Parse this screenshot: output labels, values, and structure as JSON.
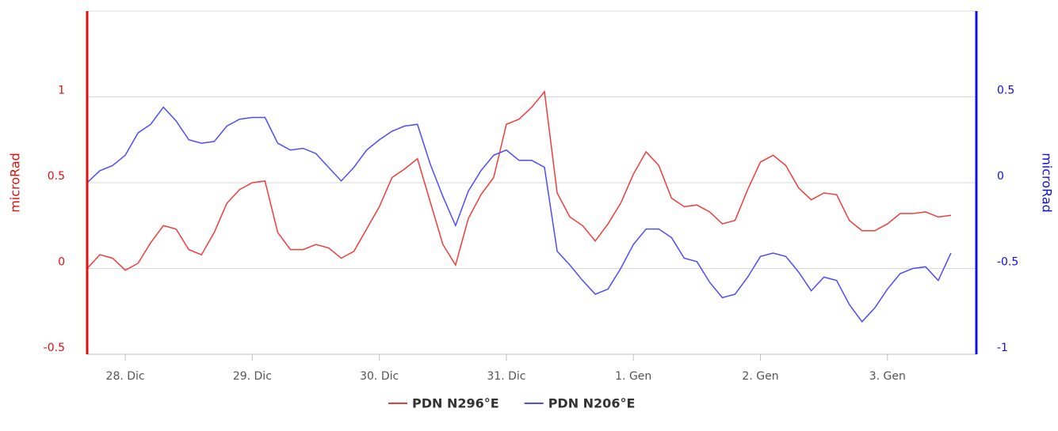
{
  "chart_data": {
    "type": "line",
    "y_label": "microRad",
    "y2_label": "microRad",
    "xlim": [
      -0.3,
      6.7
    ],
    "xticks": [
      {
        "value": 0,
        "label": "28. Dic"
      },
      {
        "value": 1,
        "label": "29. Dic"
      },
      {
        "value": 2,
        "label": "30. Dic"
      },
      {
        "value": 3,
        "label": "31. Dic"
      },
      {
        "value": 4,
        "label": "1. Gen"
      },
      {
        "value": 5,
        "label": "2. Gen"
      },
      {
        "value": 6,
        "label": "3. Gen"
      }
    ],
    "ylim": [
      -0.5,
      1.5
    ],
    "yticks": [
      -0.5,
      0,
      0.5,
      1
    ],
    "y2lim": [
      -1,
      1
    ],
    "y2ticks": [
      -1,
      -0.5,
      0,
      0.5
    ],
    "grid": true,
    "y_color": "#e01010",
    "y2_color": "#1010e0",
    "x": [
      -0.3,
      -0.2,
      -0.1,
      0,
      0.1,
      0.2,
      0.3,
      0.4,
      0.5,
      0.6,
      0.7,
      0.8,
      0.9,
      1,
      1.1,
      1.2,
      1.3,
      1.4,
      1.5,
      1.6,
      1.7,
      1.8,
      1.9,
      2,
      2.1,
      2.2,
      2.3,
      2.4,
      2.5,
      2.6,
      2.7,
      2.8,
      2.9,
      3,
      3.1,
      3.2,
      3.3,
      3.4,
      3.5,
      3.6,
      3.7,
      3.8,
      3.9,
      4,
      4.1,
      4.2,
      4.3,
      4.4,
      4.5,
      4.6,
      4.7,
      4.8,
      4.9,
      5,
      5.1,
      5.2,
      5.3,
      5.4,
      5.5,
      5.6,
      5.7,
      5.8,
      5.9,
      6,
      6.1,
      6.2,
      6.3,
      6.4,
      6.5
    ],
    "series": [
      {
        "name": "PDN N296°E",
        "color": "#f03c3c",
        "axis": "y",
        "values": [
          0,
          0.08,
          0.06,
          -0.01,
          0.03,
          0.15,
          0.25,
          0.23,
          0.11,
          0.08,
          0.21,
          0.38,
          0.46,
          0.5,
          0.51,
          0.21,
          0.11,
          0.11,
          0.14,
          0.12,
          0.06,
          0.1,
          0.23,
          0.36,
          0.53,
          0.58,
          0.64,
          0.39,
          0.14,
          0.02,
          0.29,
          0.43,
          0.53,
          0.84,
          0.87,
          0.94,
          1.03,
          0.44,
          0.3,
          0.25,
          0.16,
          0.26,
          0.38,
          0.55,
          0.68,
          0.6,
          0.41,
          0.36,
          0.37,
          0.33,
          0.26,
          0.28,
          0.46,
          0.62,
          0.66,
          0.6,
          0.47,
          0.4,
          0.44,
          0.43,
          0.28,
          0.22,
          0.22,
          0.26,
          0.32,
          0.32,
          0.33,
          0.3,
          0.31
        ]
      },
      {
        "name": "PDN N206°E",
        "color": "#4c4cff",
        "axis": "y2",
        "values": [
          0,
          0.07,
          0.1,
          0.16,
          0.29,
          0.34,
          0.44,
          0.36,
          0.25,
          0.23,
          0.24,
          0.33,
          0.37,
          0.38,
          0.38,
          0.23,
          0.19,
          0.2,
          0.17,
          0.09,
          0.01,
          0.09,
          0.19,
          0.25,
          0.3,
          0.33,
          0.34,
          0.11,
          -0.08,
          -0.25,
          -0.05,
          0.07,
          0.16,
          0.19,
          0.13,
          0.13,
          0.09,
          -0.4,
          -0.48,
          -0.57,
          -0.65,
          -0.62,
          -0.5,
          -0.36,
          -0.27,
          -0.27,
          -0.32,
          -0.44,
          -0.46,
          -0.58,
          -0.67,
          -0.65,
          -0.55,
          -0.43,
          -0.41,
          -0.43,
          -0.52,
          -0.63,
          -0.55,
          -0.57,
          -0.71,
          -0.81,
          -0.73,
          -0.62,
          -0.53,
          -0.5,
          -0.49,
          -0.57,
          -0.41
        ]
      }
    ]
  }
}
